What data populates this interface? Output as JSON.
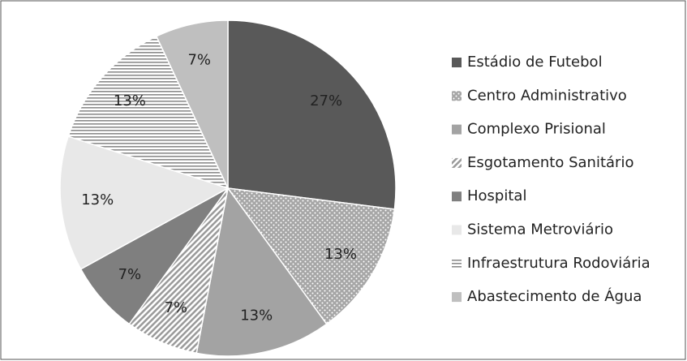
{
  "chart_data": {
    "type": "pie",
    "categories": [
      "Estádio de Futebol",
      "Centro Administrativo",
      "Complexo Prisional",
      "Esgotamento Sanitário",
      "Hospital",
      "Sistema Metroviário",
      "Infraestrutura Rodoviária",
      "Abastecimento de Água"
    ],
    "values": [
      27,
      13,
      13,
      7,
      7,
      13,
      13,
      7
    ],
    "value_labels": [
      "27%",
      "13%",
      "13%",
      "7%",
      "7%",
      "13%",
      "13%",
      "7%"
    ],
    "colors": [
      "#595959",
      "#a6a6a6",
      "#a3a3a3",
      "#9a9a9a",
      "#7f7f7f",
      "#e8e8e8",
      "#8c8c8c",
      "#bfbfbf"
    ],
    "patterns": [
      "solid",
      "dots",
      "solid",
      "diagonal",
      "solid",
      "solid",
      "horizontal",
      "solid"
    ],
    "legend": "right"
  }
}
